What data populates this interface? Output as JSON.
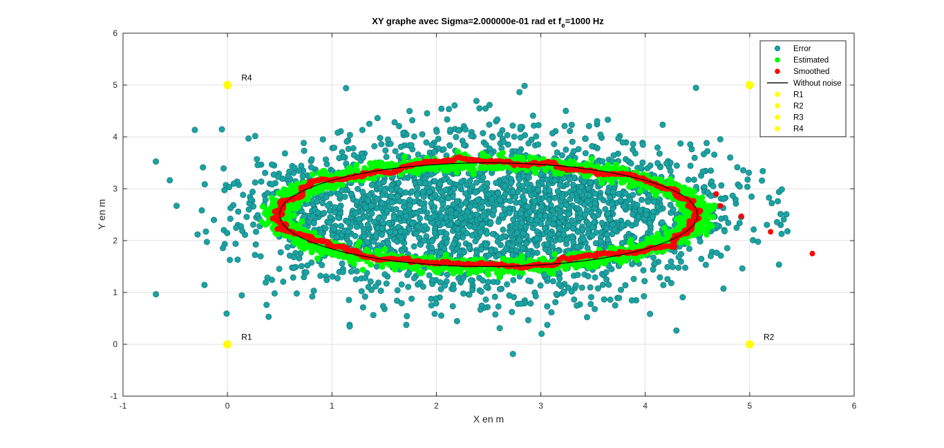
{
  "chart_data": {
    "type": "scatter",
    "title_main": "XY graphe avec Sigma=2.000000e-01 rad et f",
    "title_sub": "e",
    "title_tail": "=1000 Hz",
    "xlabel": "X en m",
    "ylabel": "Y en m",
    "xlim": [
      -1,
      6
    ],
    "ylim": [
      -1,
      6
    ],
    "xticks": [
      -1,
      0,
      1,
      2,
      3,
      4,
      5,
      6
    ],
    "yticks": [
      -1,
      0,
      1,
      2,
      3,
      4,
      5,
      6
    ],
    "xtick_labels": [
      "-1",
      "0",
      "1",
      "2",
      "3",
      "4",
      "5",
      "6"
    ],
    "ytick_labels": [
      "-1",
      "0",
      "1",
      "2",
      "3",
      "4",
      "5",
      "6"
    ],
    "grid": true,
    "legend_position": "top-right",
    "colors": {
      "error": "#1aa3a3",
      "error_edge": "#0e6b6b",
      "estimated": "#00ff00",
      "smoothed": "#ff0000",
      "without_noise": "#000000",
      "receiver": "#ffff00"
    },
    "legend": [
      {
        "label": "Error",
        "kind": "marker",
        "color": "#1aa3a3"
      },
      {
        "label": "Estimated",
        "kind": "marker",
        "color": "#00ff00"
      },
      {
        "label": "Smoothed",
        "kind": "marker",
        "color": "#ff0000"
      },
      {
        "label": "Without noise",
        "kind": "line",
        "color": "#000000"
      },
      {
        "label": "R1",
        "kind": "marker",
        "color": "#ffff00"
      },
      {
        "label": "R2",
        "kind": "marker",
        "color": "#ffff00"
      },
      {
        "label": "R3",
        "kind": "marker",
        "color": "#ffff00"
      },
      {
        "label": "R4",
        "kind": "marker",
        "color": "#ffff00"
      }
    ],
    "ellipse": {
      "cx": 2.5,
      "cy": 2.5,
      "rx": 2.0,
      "ry": 1.0
    },
    "receivers": [
      {
        "name": "R1",
        "x": 0,
        "y": 0
      },
      {
        "name": "R2",
        "x": 5,
        "y": 0
      },
      {
        "name": "R3",
        "x": 5,
        "y": 5
      },
      {
        "name": "R4",
        "x": 0,
        "y": 5
      }
    ],
    "receiver_annotations": [
      {
        "text": "R4",
        "x": 0.1,
        "y": 5.05
      },
      {
        "text": "R1",
        "x": 0.1,
        "y": 0.05
      },
      {
        "text": "R2",
        "x": 5.1,
        "y": 0.05
      }
    ],
    "error_points_count": 2600,
    "error_spread": {
      "x_min": -0.7,
      "x_max": 5.7,
      "y_min": -0.6,
      "y_max": 5.0
    },
    "smoothed_outliers": [
      {
        "x": 4.72,
        "y": 2.67
      },
      {
        "x": 4.92,
        "y": 2.47
      },
      {
        "x": 5.2,
        "y": 2.17
      },
      {
        "x": 5.6,
        "y": 1.75
      },
      {
        "x": 4.68,
        "y": 2.9
      }
    ]
  }
}
